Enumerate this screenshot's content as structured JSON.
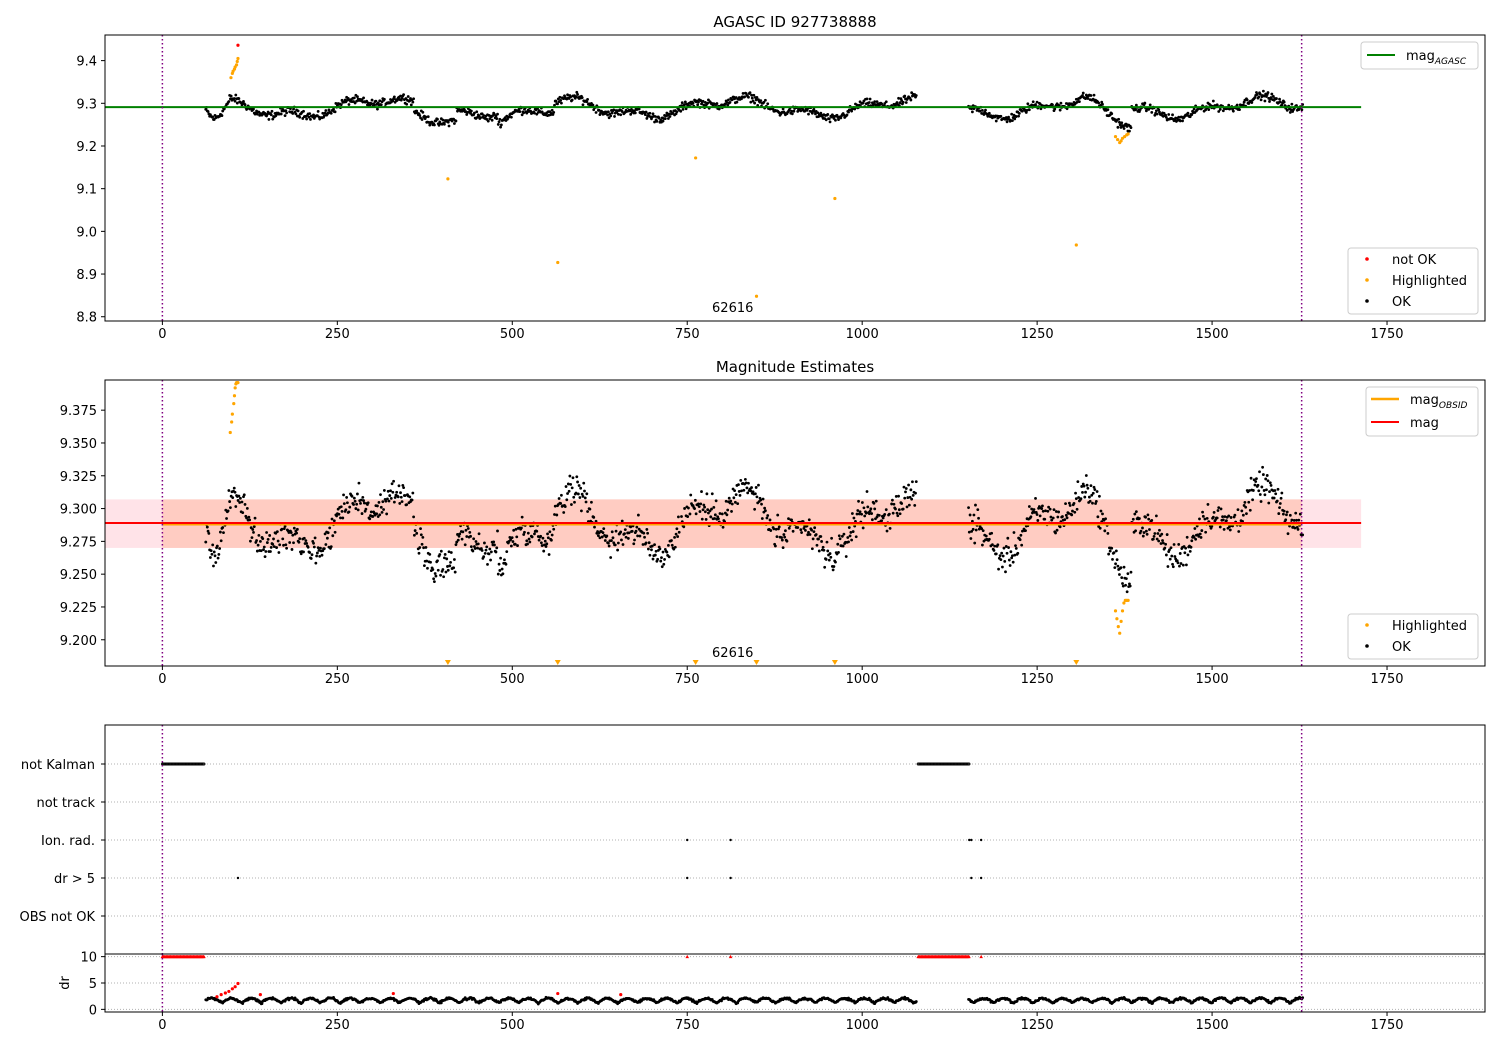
{
  "chart_data": [
    {
      "type": "scatter",
      "title": "AGASC ID 927738888",
      "xlim": [
        -82,
        1890
      ],
      "ylim": [
        8.79,
        9.46
      ],
      "xticks": [
        "0",
        "250",
        "500",
        "750",
        "1000",
        "1250",
        "1500",
        "1750"
      ],
      "yticks": [
        "8.8",
        "8.9",
        "9.0",
        "9.1",
        "9.2",
        "9.3",
        "9.4"
      ],
      "grid": false,
      "annotation": "62616",
      "annotation_x": 815,
      "vlines_x": [
        0,
        1628
      ],
      "hline": {
        "name": "mag_AGASC",
        "y": 9.291,
        "x_range": [
          -82,
          1713
        ],
        "color": "#008000"
      },
      "legends": [
        {
          "placement": "top-right",
          "items": [
            {
              "label": "mag",
              "sub": "AGASC",
              "kind": "line",
              "color": "#008000"
            }
          ]
        },
        {
          "placement": "lower-right",
          "items": [
            {
              "label": "not OK",
              "kind": "dot",
              "color": "#ff0000"
            },
            {
              "label": "Highlighted",
              "kind": "dot",
              "color": "#ffa500"
            },
            {
              "label": "OK",
              "kind": "dot",
              "color": "#000000"
            }
          ]
        }
      ],
      "series": [
        {
          "name": "not OK",
          "color": "#ff0000",
          "points": [
            [
              108,
              9.436
            ]
          ]
        },
        {
          "name": "Highlighted",
          "color": "#ffa500",
          "points": [
            [
              98,
              9.36
            ],
            [
              100,
              9.37
            ],
            [
              101,
              9.375
            ],
            [
              103,
              9.38
            ],
            [
              104,
              9.385
            ],
            [
              106,
              9.39
            ],
            [
              107,
              9.398
            ],
            [
              108,
              9.405
            ],
            [
              408,
              9.123
            ],
            [
              565,
              8.927
            ],
            [
              762,
              9.172
            ],
            [
              849,
              8.848
            ],
            [
              961,
              9.077
            ],
            [
              1306,
              8.968
            ],
            [
              1362,
              9.222
            ],
            [
              1365,
              9.215
            ],
            [
              1368,
              9.208
            ],
            [
              1370,
              9.212
            ],
            [
              1372,
              9.218
            ],
            [
              1375,
              9.222
            ],
            [
              1378,
              9.226
            ],
            [
              1380,
              9.228
            ]
          ]
        }
      ]
    },
    {
      "type": "scatter",
      "title": "Magnitude Estimates",
      "xlim": [
        -82,
        1890
      ],
      "ylim": [
        9.18,
        9.398
      ],
      "xticks": [
        "0",
        "250",
        "500",
        "750",
        "1000",
        "1250",
        "1500",
        "1750"
      ],
      "yticks": [
        "9.200",
        "9.225",
        "9.250",
        "9.275",
        "9.300",
        "9.325",
        "9.350",
        "9.375"
      ],
      "grid": false,
      "annotation": "62616",
      "annotation_x": 815,
      "vlines_x": [
        0,
        1628
      ],
      "band_outer": {
        "y": [
          9.27,
          9.307
        ],
        "color": "#ffc0cb"
      },
      "band_inner": {
        "y": [
          9.27,
          9.307
        ],
        "color": "#ffa07a"
      },
      "hlines": [
        {
          "name": "mag_OBSID",
          "y": 9.288,
          "color": "#ffa500"
        },
        {
          "name": "mag",
          "y": 9.289,
          "color": "#ff0000"
        }
      ],
      "offscale_markers_x": [
        408,
        565,
        762,
        849,
        961,
        1306
      ],
      "legends": [
        {
          "placement": "top-right",
          "items": [
            {
              "label": "mag",
              "sub": "OBSID",
              "kind": "line",
              "color": "#ffa500"
            },
            {
              "label": "mag",
              "kind": "line",
              "color": "#ff0000"
            }
          ]
        },
        {
          "placement": "lower-right",
          "items": [
            {
              "label": "Highlighted",
              "kind": "dot",
              "color": "#ffa500"
            },
            {
              "label": "OK",
              "kind": "dot",
              "color": "#000000"
            }
          ]
        }
      ],
      "series": [
        {
          "name": "Highlighted",
          "color": "#ffa500",
          "points": [
            [
              97,
              9.358
            ],
            [
              99,
              9.366
            ],
            [
              100,
              9.372
            ],
            [
              102,
              9.38
            ],
            [
              103,
              9.386
            ],
            [
              104,
              9.392
            ],
            [
              105,
              9.395
            ],
            [
              106,
              9.396
            ],
            [
              107,
              9.396
            ],
            [
              108,
              9.396
            ],
            [
              1362,
              9.222
            ],
            [
              1364,
              9.216
            ],
            [
              1366,
              9.21
            ],
            [
              1368,
              9.205
            ],
            [
              1370,
              9.214
            ],
            [
              1372,
              9.222
            ],
            [
              1374,
              9.228
            ],
            [
              1376,
              9.23
            ],
            [
              1378,
              9.23
            ],
            [
              1380,
              9.23
            ]
          ]
        }
      ]
    },
    {
      "type": "scatter",
      "title": "",
      "xlim": [
        -82,
        1890
      ],
      "categories": [
        "not Kalman",
        "not track",
        "Ion. rad.",
        "dr > 5",
        "OBS not OK"
      ],
      "vlines_x": [
        0,
        1628
      ],
      "grid": true,
      "series": [
        {
          "name": "not Kalman",
          "ranges": [
            [
              0,
              60
            ],
            [
              1080,
              1153
            ]
          ]
        },
        {
          "name": "not track",
          "ranges": []
        },
        {
          "name": "Ion. rad.",
          "points": [
            750,
            812,
            1153,
            1156,
            1170
          ]
        },
        {
          "name": "dr > 5",
          "points": [
            108,
            750,
            812,
            1156,
            1170
          ]
        },
        {
          "name": "OBS not OK",
          "points": []
        }
      ]
    },
    {
      "type": "scatter",
      "title": "",
      "ylabel": "dr",
      "xlim": [
        -82,
        1890
      ],
      "ylim": [
        -0.5,
        10.5
      ],
      "xticks": [
        "0",
        "250",
        "500",
        "750",
        "1000",
        "1250",
        "1500",
        "1750"
      ],
      "yticks": [
        "0",
        "5",
        "10"
      ],
      "vlines_x": [
        0,
        1628
      ],
      "clipped_at": 10,
      "clipped_ranges": [
        [
          0,
          60
        ],
        [
          1080,
          1153
        ]
      ],
      "clipped_points": [
        750,
        812,
        1170
      ],
      "red_points": [
        [
          78,
          2.4
        ],
        [
          84,
          2.8
        ],
        [
          90,
          3.1
        ],
        [
          95,
          3.4
        ],
        [
          100,
          3.9
        ],
        [
          104,
          4.3
        ],
        [
          108,
          4.9
        ],
        [
          140,
          2.8
        ],
        [
          330,
          3.0
        ],
        [
          565,
          3.0
        ],
        [
          655,
          2.8
        ]
      ]
    }
  ]
}
